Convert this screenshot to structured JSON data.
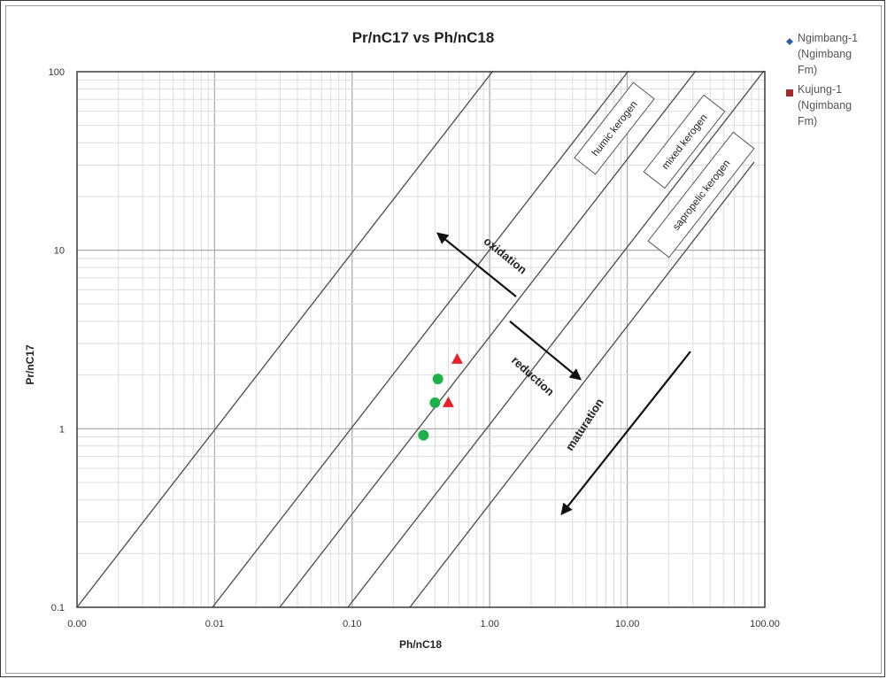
{
  "chart_data": {
    "type": "scatter",
    "title": "Pr/nC17 vs Ph/nC18",
    "xlabel": "Ph/nC18",
    "ylabel": "Pr/nC17",
    "x_scale": "log",
    "y_scale": "log",
    "xlim": [
      0.001,
      100
    ],
    "ylim": [
      0.1,
      100
    ],
    "x_ticks": [
      "0.00",
      "0.01",
      "0.10",
      "1.00",
      "10.00",
      "100.00"
    ],
    "y_ticks": [
      "0.1",
      "1",
      "10",
      "100"
    ],
    "grid": true,
    "legend_position": "top-right",
    "legend": [
      {
        "label": "Ngimbang-1\n(Ngimbang\nFm)",
        "marker": "diamond",
        "color": "#2E5FA8"
      },
      {
        "label": "Kujung-1\n(Ngimbang\nFm)",
        "marker": "square",
        "color": "#A52A2A"
      }
    ],
    "series": [
      {
        "marker": "circle",
        "color": "#1DB14B",
        "points": [
          [
            0.42,
            1.9
          ],
          [
            0.4,
            1.4
          ],
          [
            0.33,
            0.92
          ]
        ]
      },
      {
        "marker": "triangle",
        "color": "#E8202A",
        "points": [
          [
            0.58,
            2.45
          ],
          [
            0.5,
            1.4
          ]
        ]
      }
    ],
    "region_labels": [
      "humic kerogen",
      "mixed kerogen",
      "sapropelic kerogen"
    ],
    "arrow_labels": [
      "oxidation",
      "reduction",
      "maturation"
    ]
  }
}
